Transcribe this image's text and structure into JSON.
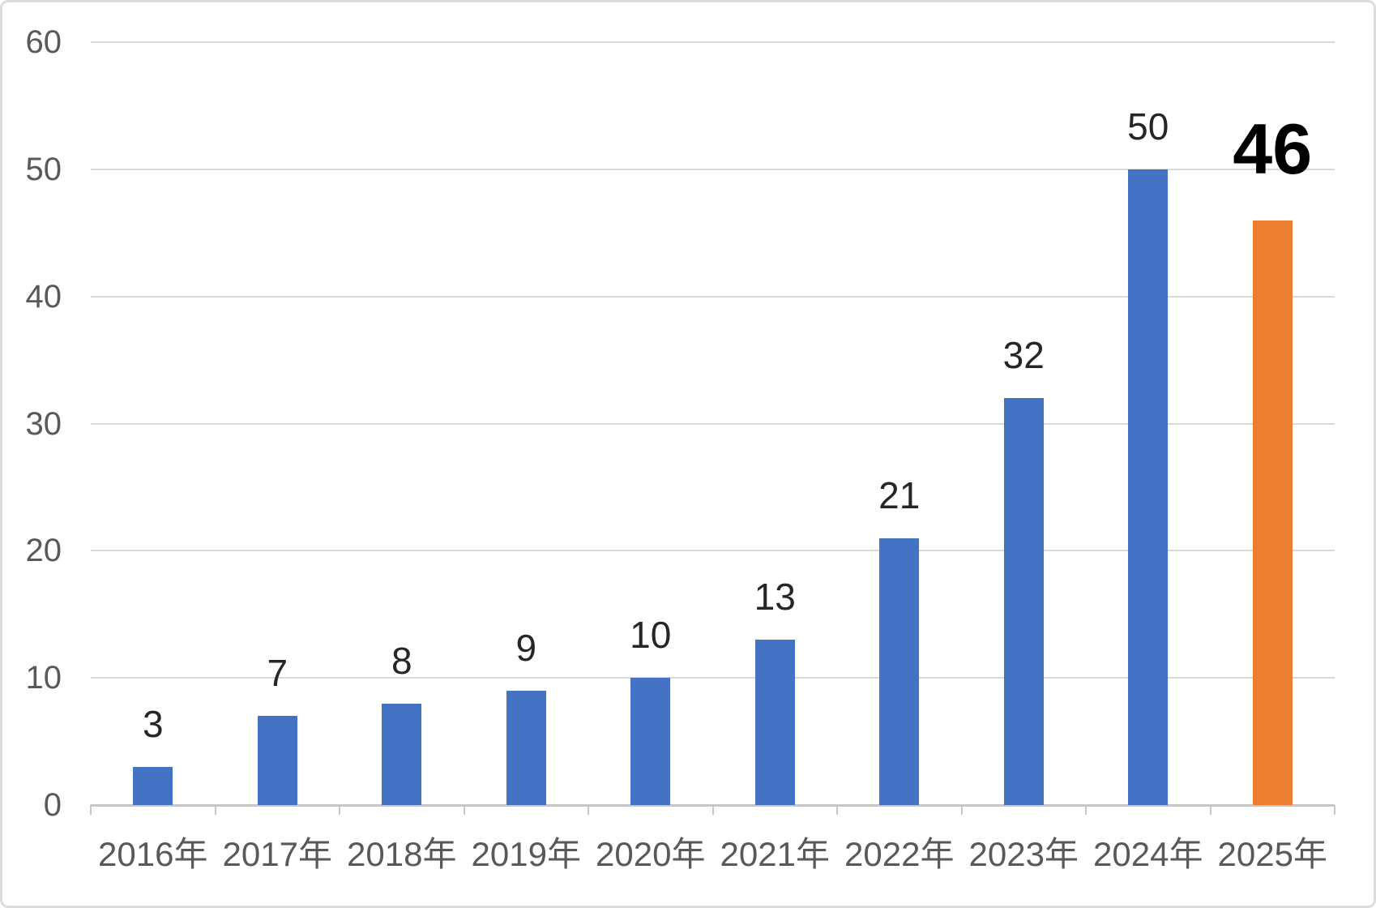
{
  "chart_data": {
    "type": "bar",
    "title": "",
    "xlabel": "",
    "ylabel": "",
    "categories": [
      "2016年",
      "2017年",
      "2018年",
      "2019年",
      "2020年",
      "2021年",
      "2022年",
      "2023年",
      "2024年",
      "2025年"
    ],
    "values": [
      3,
      7,
      8,
      9,
      10,
      13,
      21,
      32,
      50,
      46
    ],
    "data_labels": [
      "3",
      "7",
      "8",
      "9",
      "10",
      "13",
      "21",
      "32",
      "50",
      "46"
    ],
    "highlight_index": 9,
    "highlight_label": "46",
    "ylim": [
      0,
      60
    ],
    "y_ticks": [
      0,
      10,
      20,
      30,
      40,
      50,
      60
    ],
    "grid": true,
    "legend": false,
    "colors": {
      "bar": "#4472C4",
      "highlight_bar": "#ED7D31",
      "gridline": "#D9D9D9",
      "axis_line": "#C6C6C6",
      "axis_label": "#595959",
      "data_label": "#262626",
      "highlight_label": "#000000",
      "frame_border": "#DCDCDC",
      "background": "#FFFFFF"
    }
  }
}
